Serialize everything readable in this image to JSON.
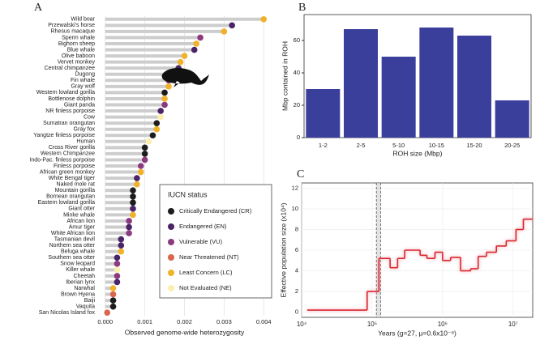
{
  "chart_data": [
    {
      "type": "lollipop",
      "panel_label": "A",
      "categories": [
        "Wild boar",
        "Przewalski's horse",
        "Rhesus macaque",
        "Sperm whale",
        "Bighorn sheep",
        "Blue whale",
        "Olive baboon",
        "Vervet monkey",
        "Central chimpanzee",
        "Dugong",
        "Fin whale",
        "Gray wolf",
        "Western lowland gorilla",
        "Bottlenose dolphin",
        "Giant panda",
        "NR finless porpoise",
        "Cow",
        "Sumatran orangutan",
        "Gray fox",
        "Yangtze finless porpoise",
        "Human",
        "Cross River gorilla",
        "Western Chimpanzee",
        "Indo-Pac. finless porpoise",
        "Finless porpoise",
        "African green monkey",
        "White Bengal tiger",
        "Naked mole rat",
        "Mountain gorilla",
        "Bornean orangutan",
        "Eastern lowland gorilla",
        "Giant otter",
        "Minke whale",
        "African lion",
        "Amur tiger",
        "White African lion",
        "Tasmanian devil",
        "Northern sea otter",
        "Beluga whale",
        "Southern sea otter",
        "Snow leopard",
        "Killer whale",
        "Cheetah",
        "Iberian lynx",
        "Narwhal",
        "Brown Hyena",
        "Baiji",
        "Vaquita",
        "San Nicolas Island fox"
      ],
      "series": [
        {
          "name": "Critically Endangered (CR)",
          "color": "#1c1c1c",
          "values": [
            null,
            null,
            null,
            null,
            null,
            null,
            null,
            null,
            null,
            null,
            null,
            null,
            0.0015,
            null,
            null,
            null,
            null,
            0.0013,
            null,
            0.0012,
            null,
            0.001,
            0.001,
            null,
            null,
            null,
            null,
            null,
            0.0007,
            0.0007,
            0.0007,
            null,
            null,
            null,
            null,
            null,
            null,
            null,
            null,
            null,
            null,
            null,
            null,
            null,
            null,
            null,
            0.0002,
            0.0002,
            null
          ]
        },
        {
          "name": "Endangered (EN)",
          "color": "#4a2466",
          "values": [
            null,
            0.0032,
            null,
            null,
            null,
            0.00225,
            null,
            null,
            0.00185,
            null,
            null,
            null,
            null,
            null,
            null,
            0.0014,
            null,
            null,
            null,
            null,
            null,
            null,
            null,
            null,
            null,
            null,
            0.0008,
            null,
            null,
            null,
            null,
            0.0007,
            null,
            null,
            0.0006,
            null,
            0.0004,
            0.0004,
            null,
            0.0003,
            null,
            null,
            null,
            0.0003,
            null,
            null,
            null,
            null,
            null
          ]
        },
        {
          "name": "Vulnerable (VU)",
          "color": "#8c3a80",
          "values": [
            null,
            null,
            null,
            0.0024,
            null,
            null,
            null,
            null,
            null,
            0.0018,
            0.0016,
            null,
            null,
            null,
            0.0015,
            null,
            null,
            null,
            null,
            null,
            null,
            null,
            null,
            0.001,
            0.0009,
            null,
            null,
            null,
            null,
            null,
            null,
            null,
            null,
            0.0006,
            null,
            0.0006,
            null,
            null,
            null,
            null,
            0.0003,
            null,
            0.0003,
            null,
            null,
            null,
            null,
            null,
            null
          ]
        },
        {
          "name": "Near Threatened (NT)",
          "color": "#d9674e",
          "values": [
            null,
            null,
            null,
            null,
            null,
            null,
            null,
            null,
            null,
            null,
            null,
            null,
            null,
            null,
            null,
            null,
            null,
            null,
            null,
            null,
            null,
            null,
            null,
            null,
            null,
            null,
            null,
            null,
            null,
            null,
            null,
            null,
            null,
            null,
            null,
            null,
            null,
            null,
            null,
            null,
            null,
            null,
            null,
            null,
            null,
            0.0002,
            null,
            null,
            5e-05
          ]
        },
        {
          "name": "Least Concern (LC)",
          "color": "#f0b22a",
          "values": [
            0.004,
            null,
            0.003,
            null,
            0.0023,
            null,
            0.002,
            0.0019,
            null,
            null,
            null,
            0.0016,
            null,
            0.0015,
            null,
            null,
            null,
            null,
            0.0013,
            null,
            null,
            null,
            null,
            null,
            null,
            0.0009,
            null,
            0.0008,
            null,
            null,
            null,
            null,
            0.0007,
            null,
            null,
            null,
            null,
            null,
            0.0004,
            null,
            null,
            null,
            null,
            null,
            0.0002,
            null,
            null,
            null,
            null
          ]
        },
        {
          "name": "Not Evaluated (NE)",
          "color": "#fcefae",
          "values": [
            null,
            null,
            null,
            null,
            null,
            null,
            null,
            null,
            null,
            null,
            null,
            null,
            null,
            null,
            null,
            null,
            0.0014,
            null,
            null,
            null,
            0.0011,
            null,
            null,
            null,
            null,
            null,
            null,
            null,
            null,
            null,
            null,
            null,
            null,
            null,
            null,
            null,
            null,
            null,
            null,
            null,
            null,
            0.0003,
            null,
            null,
            null,
            null,
            null,
            null,
            null
          ]
        }
      ],
      "legend_title": "IUCN status",
      "xlim": [
        -0.0002,
        0.0042
      ],
      "xticks": [
        {
          "value": 0,
          "label": "0.000"
        },
        {
          "value": 0.001,
          "label": "0.001"
        },
        {
          "value": 0.002,
          "label": "0.002"
        },
        {
          "value": 0.003,
          "label": "0.003"
        },
        {
          "value": 0.004,
          "label": "0.004"
        }
      ],
      "xlabel": "Observed genome-wide heterozygosity",
      "grid": true
    },
    {
      "type": "bar",
      "panel_label": "B",
      "categories": [
        "1-2",
        "2-5",
        "5-10",
        "10-15",
        "15-20",
        "20-25"
      ],
      "values": [
        30,
        67,
        50,
        68,
        63,
        23
      ],
      "color": "#3b3f9c",
      "ylim": [
        0,
        76
      ],
      "yticks": [
        0,
        20,
        40,
        60
      ],
      "xlabel": "ROH size (Mbp)",
      "ylabel": "Mbp contained in ROH"
    },
    {
      "type": "line",
      "panel_label": "C",
      "step": true,
      "xscale": "log",
      "color": "#d7262f",
      "x": [
        12000,
        85000,
        125000,
        180000,
        230000,
        290000,
        480000,
        600000,
        780000,
        1000000,
        1300000,
        1800000,
        2500000,
        3200000,
        4200000,
        5800000,
        8000000,
        11000000,
        14000000
      ],
      "values": [
        0.2,
        2,
        5.2,
        4.3,
        5.2,
        6,
        5.5,
        5.2,
        5.8,
        5,
        5.3,
        4,
        4.2,
        5.4,
        5.8,
        6.4,
        6.9,
        8,
        9
      ],
      "highlight_x": [
        115000,
        132000
      ],
      "xlim": [
        10000,
        19000000
      ],
      "xticks": [
        {
          "value": 10000,
          "label": "10⁴"
        },
        {
          "value": 100000,
          "label": "10⁵"
        },
        {
          "value": 1000000,
          "label": "10⁶"
        },
        {
          "value": 10000000,
          "label": "10⁷"
        }
      ],
      "ylim": [
        -0.5,
        12.5
      ],
      "yticks": [
        0,
        2,
        4,
        6,
        8,
        10,
        12
      ],
      "xlabel": "Years (g=27, μ=0.6x10⁻⁸)",
      "ylabel": "Effective population size (x10⁴)",
      "grid": true
    }
  ]
}
